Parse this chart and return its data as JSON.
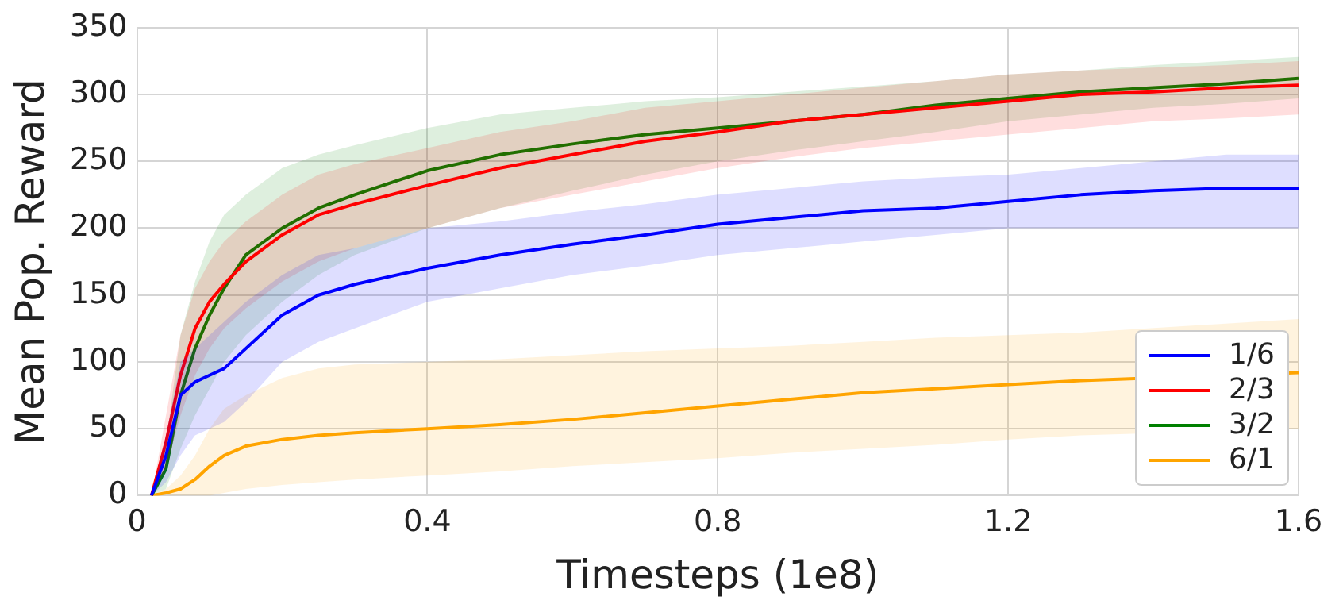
{
  "chart_data": {
    "type": "line",
    "xlabel": "Timesteps (1e8)",
    "ylabel": "Mean Pop. Reward",
    "x": [
      0.02,
      0.04,
      0.06,
      0.08,
      0.1,
      0.12,
      0.15,
      0.2,
      0.25,
      0.3,
      0.4,
      0.5,
      0.6,
      0.7,
      0.8,
      0.9,
      1.0,
      1.1,
      1.2,
      1.3,
      1.4,
      1.5,
      1.6
    ],
    "series": [
      {
        "name": "1/6",
        "color": "#0000ff",
        "values": [
          0,
          30,
          75,
          85,
          90,
          95,
          110,
          135,
          150,
          158,
          170,
          180,
          188,
          195,
          203,
          208,
          213,
          215,
          220,
          225,
          228,
          230,
          230
        ],
        "lower": [
          0,
          10,
          30,
          45,
          50,
          55,
          70,
          100,
          115,
          125,
          145,
          155,
          165,
          172,
          180,
          185,
          190,
          195,
          200,
          200,
          200,
          200,
          200
        ],
        "upper": [
          0,
          45,
          100,
          110,
          120,
          130,
          145,
          165,
          180,
          185,
          200,
          205,
          212,
          218,
          225,
          230,
          235,
          238,
          240,
          245,
          250,
          255,
          255
        ]
      },
      {
        "name": "2/3",
        "color": "#ff0000",
        "values": [
          0,
          40,
          90,
          125,
          145,
          158,
          175,
          195,
          210,
          218,
          232,
          245,
          255,
          265,
          272,
          280,
          285,
          290,
          295,
          300,
          302,
          305,
          307
        ],
        "lower": [
          0,
          20,
          60,
          90,
          110,
          125,
          140,
          160,
          175,
          185,
          200,
          215,
          225,
          235,
          245,
          253,
          260,
          265,
          270,
          275,
          280,
          282,
          285
        ],
        "upper": [
          0,
          60,
          120,
          155,
          175,
          190,
          205,
          225,
          240,
          248,
          260,
          272,
          280,
          290,
          295,
          300,
          305,
          310,
          315,
          318,
          320,
          322,
          325
        ]
      },
      {
        "name": "3/2",
        "color": "#008000",
        "values": [
          0,
          20,
          75,
          110,
          135,
          155,
          180,
          200,
          215,
          225,
          243,
          255,
          263,
          270,
          275,
          280,
          285,
          292,
          297,
          302,
          305,
          308,
          312
        ],
        "lower": [
          0,
          5,
          35,
          60,
          80,
          100,
          120,
          145,
          165,
          180,
          200,
          215,
          228,
          240,
          250,
          258,
          265,
          272,
          280,
          285,
          290,
          293,
          297
        ],
        "upper": [
          0,
          40,
          120,
          160,
          190,
          210,
          225,
          245,
          255,
          262,
          275,
          285,
          290,
          295,
          298,
          302,
          306,
          310,
          315,
          318,
          322,
          325,
          328
        ]
      },
      {
        "name": "6/1",
        "color": "#ffa500",
        "values": [
          0,
          2,
          5,
          12,
          22,
          30,
          37,
          42,
          45,
          47,
          50,
          53,
          57,
          62,
          67,
          72,
          77,
          80,
          83,
          86,
          null,
          null,
          92
        ],
        "lower": [
          0,
          0,
          0,
          0,
          0,
          2,
          5,
          8,
          10,
          12,
          15,
          18,
          22,
          25,
          28,
          32,
          35,
          38,
          42,
          45,
          null,
          null,
          50
        ],
        "upper": [
          0,
          5,
          15,
          30,
          50,
          65,
          75,
          88,
          95,
          98,
          100,
          102,
          105,
          108,
          110,
          112,
          115,
          118,
          120,
          122,
          null,
          null,
          132
        ]
      }
    ],
    "xlim": [
      0,
      1.6
    ],
    "xticks": [
      0,
      0.4,
      0.8,
      1.2,
      1.6
    ],
    "ylim": [
      0,
      350
    ],
    "yticks": [
      0,
      50,
      100,
      150,
      200,
      250,
      300,
      350
    ],
    "grid": true,
    "legend": "bottom right",
    "marker": "none",
    "line_style": "solid"
  }
}
